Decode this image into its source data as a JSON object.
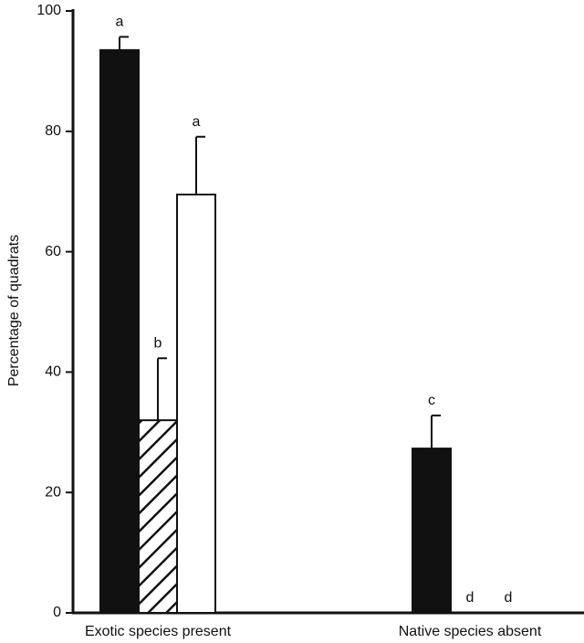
{
  "chart_data": {
    "type": "bar",
    "y_label": "Percentage of quadrats",
    "categories": [
      "Exotic species present",
      "Native species absent"
    ],
    "ylim": [
      0,
      100
    ],
    "yticks": [
      0,
      20,
      40,
      60,
      80,
      100
    ],
    "series": [
      {
        "color": "#111111",
        "hatch": false,
        "values": [
          93.5,
          27.3
        ],
        "errors": [
          2.2,
          5.5
        ],
        "letters": [
          "a",
          "c"
        ]
      },
      {
        "color": "#ffffff",
        "hatch": true,
        "values": [
          32,
          0
        ],
        "errors": [
          10.3,
          null
        ],
        "letters": [
          "b",
          "d"
        ]
      },
      {
        "color": "#ffffff",
        "hatch": false,
        "values": [
          69.5,
          0
        ],
        "errors": [
          9.6,
          null
        ],
        "letters": [
          "a",
          "d"
        ]
      }
    ]
  }
}
